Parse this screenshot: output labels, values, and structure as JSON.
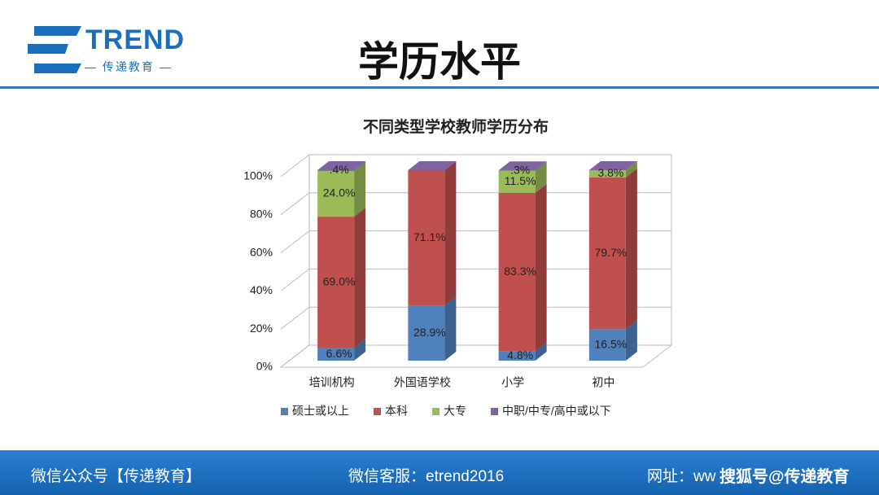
{
  "header": {
    "logo": "TREND",
    "logo_subtitle": "— 传递教育 —",
    "title": "学历水平"
  },
  "chart_data": {
    "type": "bar3d_stacked",
    "title": "不同类型学校教师学历分布",
    "categories": [
      "培训机构",
      "外国语学校",
      "小学",
      "初中"
    ],
    "series": [
      {
        "name": "硕士或以上",
        "color": "#4f81bd",
        "values": [
          6.6,
          28.9,
          4.8,
          16.5
        ],
        "value_labels": [
          "6.6%",
          "28.9%",
          "4.8%",
          "16.5%"
        ]
      },
      {
        "name": "本科",
        "color": "#c0504d",
        "values": [
          69.0,
          71.1,
          83.3,
          79.7
        ],
        "value_labels": [
          "69.0%",
          "71.1%",
          "83.3%",
          "79.7%"
        ]
      },
      {
        "name": "大专",
        "color": "#9bbb59",
        "values": [
          24.0,
          null,
          11.5,
          3.8
        ],
        "value_labels": [
          "24.0%",
          null,
          "11.5%",
          "3.8%"
        ]
      },
      {
        "name": "中职/中专/高中或以下",
        "color": "#8064a2",
        "values": [
          0.4,
          null,
          0.3,
          null
        ],
        "value_labels": [
          ".4%",
          null,
          ".3%",
          null
        ]
      }
    ],
    "ylim": [
      0,
      100
    ],
    "yticks": [
      {
        "value": 0,
        "label": "0%"
      },
      {
        "value": 20,
        "label": "20%"
      },
      {
        "value": 40,
        "label": "40%"
      },
      {
        "value": 60,
        "label": "60%"
      },
      {
        "value": 80,
        "label": "80%"
      },
      {
        "value": 100,
        "label": "100%"
      }
    ],
    "grid": true,
    "legend": "bottom"
  },
  "footer": {
    "wechat": "微信公众号【传递教育】",
    "service": "微信客服：etrend2016",
    "website": "网址：ww",
    "watermark": "搜狐号@传递教育"
  }
}
